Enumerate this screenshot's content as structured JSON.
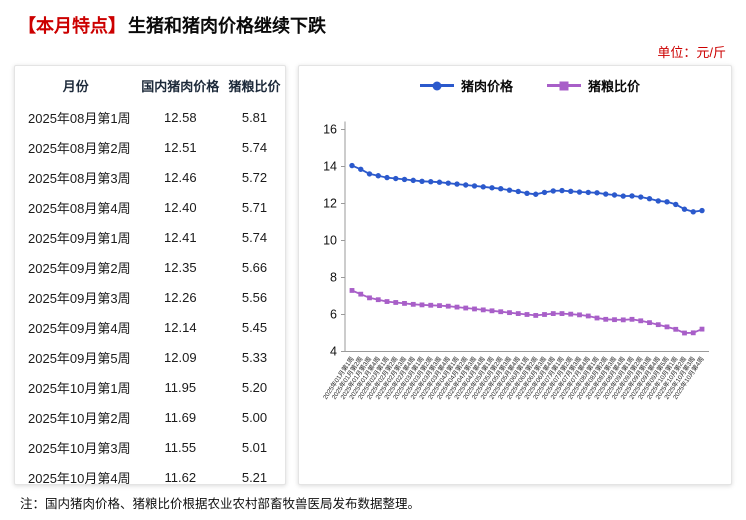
{
  "header": {
    "tag": "【本月特点】",
    "title": "生猪和猪肉价格继续下跌",
    "unit": "单位：元/斤"
  },
  "colors": {
    "accent_red": "#cc0000",
    "pork_blue": "#2b59cc",
    "ratio_purple": "#a85fc8",
    "axis_gray": "#9a9a9a"
  },
  "table": {
    "headers": [
      "月份",
      "国内猪肉价格",
      "猪粮比价"
    ],
    "rows": [
      [
        "2025年08月第1周",
        "12.58",
        "5.81"
      ],
      [
        "2025年08月第2周",
        "12.51",
        "5.74"
      ],
      [
        "2025年08月第3周",
        "12.46",
        "5.72"
      ],
      [
        "2025年08月第4周",
        "12.40",
        "5.71"
      ],
      [
        "2025年09月第1周",
        "12.41",
        "5.74"
      ],
      [
        "2025年09月第2周",
        "12.35",
        "5.66"
      ],
      [
        "2025年09月第3周",
        "12.26",
        "5.56"
      ],
      [
        "2025年09月第4周",
        "12.14",
        "5.45"
      ],
      [
        "2025年09月第5周",
        "12.09",
        "5.33"
      ],
      [
        "2025年10月第1周",
        "11.95",
        "5.20"
      ],
      [
        "2025年10月第2周",
        "11.69",
        "5.00"
      ],
      [
        "2025年10月第3周",
        "11.55",
        "5.01"
      ],
      [
        "2025年10月第4周",
        "11.62",
        "5.21"
      ]
    ]
  },
  "chart_data": {
    "type": "line",
    "title": "",
    "xlabel": "",
    "ylabel": "",
    "ylim": [
      4,
      16
    ],
    "yticks": [
      4,
      6,
      8,
      10,
      12,
      14,
      16
    ],
    "grid": false,
    "legend_position": "top",
    "categories": [
      "2025年01月第1周",
      "2025年01月第2周",
      "2025年01月第3周",
      "2025年01月第4周",
      "2025年02月第1周",
      "2025年02月第2周",
      "2025年02月第3周",
      "2025年02月第4周",
      "2025年03月第1周",
      "2025年03月第2周",
      "2025年03月第3周",
      "2025年03月第4周",
      "2025年04月第1周",
      "2025年04月第2周",
      "2025年04月第3周",
      "2025年04月第4周",
      "2025年05月第1周",
      "2025年05月第2周",
      "2025年05月第3周",
      "2025年05月第4周",
      "2025年06月第1周",
      "2025年06月第2周",
      "2025年06月第3周",
      "2025年06月第4周",
      "2025年07月第1周",
      "2025年07月第2周",
      "2025年07月第3周",
      "2025年07月第4周",
      "2025年08月第1周",
      "2025年08月第2周",
      "2025年08月第3周",
      "2025年08月第4周",
      "2025年09月第1周",
      "2025年09月第2周",
      "2025年09月第3周",
      "2025年09月第4周",
      "2025年09月第5周",
      "2025年10月第1周",
      "2025年10月第2周",
      "2025年10月第3周",
      "2025年10月第4周"
    ],
    "series": [
      {
        "name": "猪肉价格",
        "marker": "circle",
        "color": "#2b59cc",
        "values": [
          14.05,
          13.85,
          13.6,
          13.5,
          13.4,
          13.35,
          13.3,
          13.25,
          13.2,
          13.18,
          13.15,
          13.1,
          13.05,
          13.0,
          12.95,
          12.9,
          12.85,
          12.8,
          12.72,
          12.65,
          12.55,
          12.5,
          12.6,
          12.68,
          12.7,
          12.66,
          12.62,
          12.6,
          12.58,
          12.51,
          12.46,
          12.4,
          12.41,
          12.35,
          12.26,
          12.14,
          12.09,
          11.95,
          11.69,
          11.55,
          11.62
        ]
      },
      {
        "name": "猪粮比价",
        "marker": "square",
        "color": "#a85fc8",
        "values": [
          7.3,
          7.1,
          6.9,
          6.8,
          6.7,
          6.65,
          6.6,
          6.55,
          6.52,
          6.5,
          6.48,
          6.45,
          6.4,
          6.35,
          6.3,
          6.25,
          6.2,
          6.15,
          6.1,
          6.05,
          6.0,
          5.95,
          6.0,
          6.05,
          6.05,
          6.02,
          5.98,
          5.92,
          5.81,
          5.74,
          5.72,
          5.71,
          5.74,
          5.66,
          5.56,
          5.45,
          5.33,
          5.2,
          5.0,
          5.01,
          5.21
        ]
      }
    ]
  },
  "note": "注：国内猪肉价格、猪粮比价根据农业农村部畜牧兽医局发布数据整理。"
}
